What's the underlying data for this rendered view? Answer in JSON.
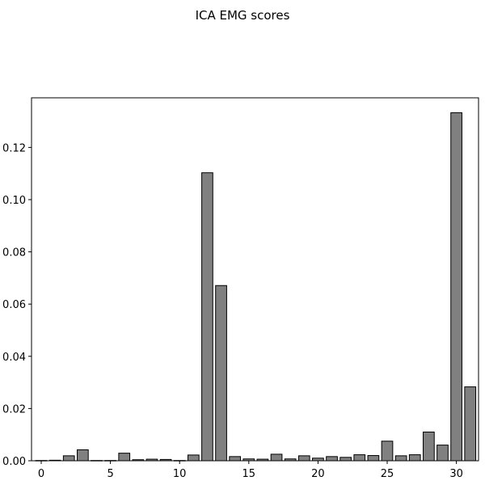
{
  "chart_data": {
    "type": "bar",
    "title": "ICA EMG scores",
    "xlabel": "",
    "ylabel": "",
    "x": [
      0,
      1,
      2,
      3,
      4,
      5,
      6,
      7,
      8,
      9,
      10,
      11,
      12,
      13,
      14,
      15,
      16,
      17,
      18,
      19,
      20,
      21,
      22,
      23,
      24,
      25,
      26,
      27,
      28,
      29,
      30,
      31
    ],
    "values": [
      0.0001,
      0.0002,
      0.0019,
      0.0042,
      0.0001,
      0.0001,
      0.0029,
      0.0004,
      0.0006,
      0.0005,
      0.0001,
      0.0022,
      0.1103,
      0.0671,
      0.0016,
      0.0007,
      0.0006,
      0.0025,
      0.0007,
      0.0019,
      0.001,
      0.0016,
      0.0013,
      0.0023,
      0.002,
      0.0075,
      0.0019,
      0.0023,
      0.011,
      0.006,
      0.1333,
      0.0283
    ],
    "xlim": [
      -0.7,
      31.6
    ],
    "ylim": [
      0,
      0.139
    ],
    "xticks": [
      0,
      5,
      10,
      15,
      20,
      25,
      30
    ],
    "yticks": [
      0.0,
      0.02,
      0.04,
      0.06,
      0.08,
      0.1,
      0.12
    ],
    "ytick_labels": [
      "0.00",
      "0.02",
      "0.04",
      "0.06",
      "0.08",
      "0.10",
      "0.12"
    ],
    "bar_color": "#808080",
    "edge_color": "#000000",
    "grid": false
  }
}
